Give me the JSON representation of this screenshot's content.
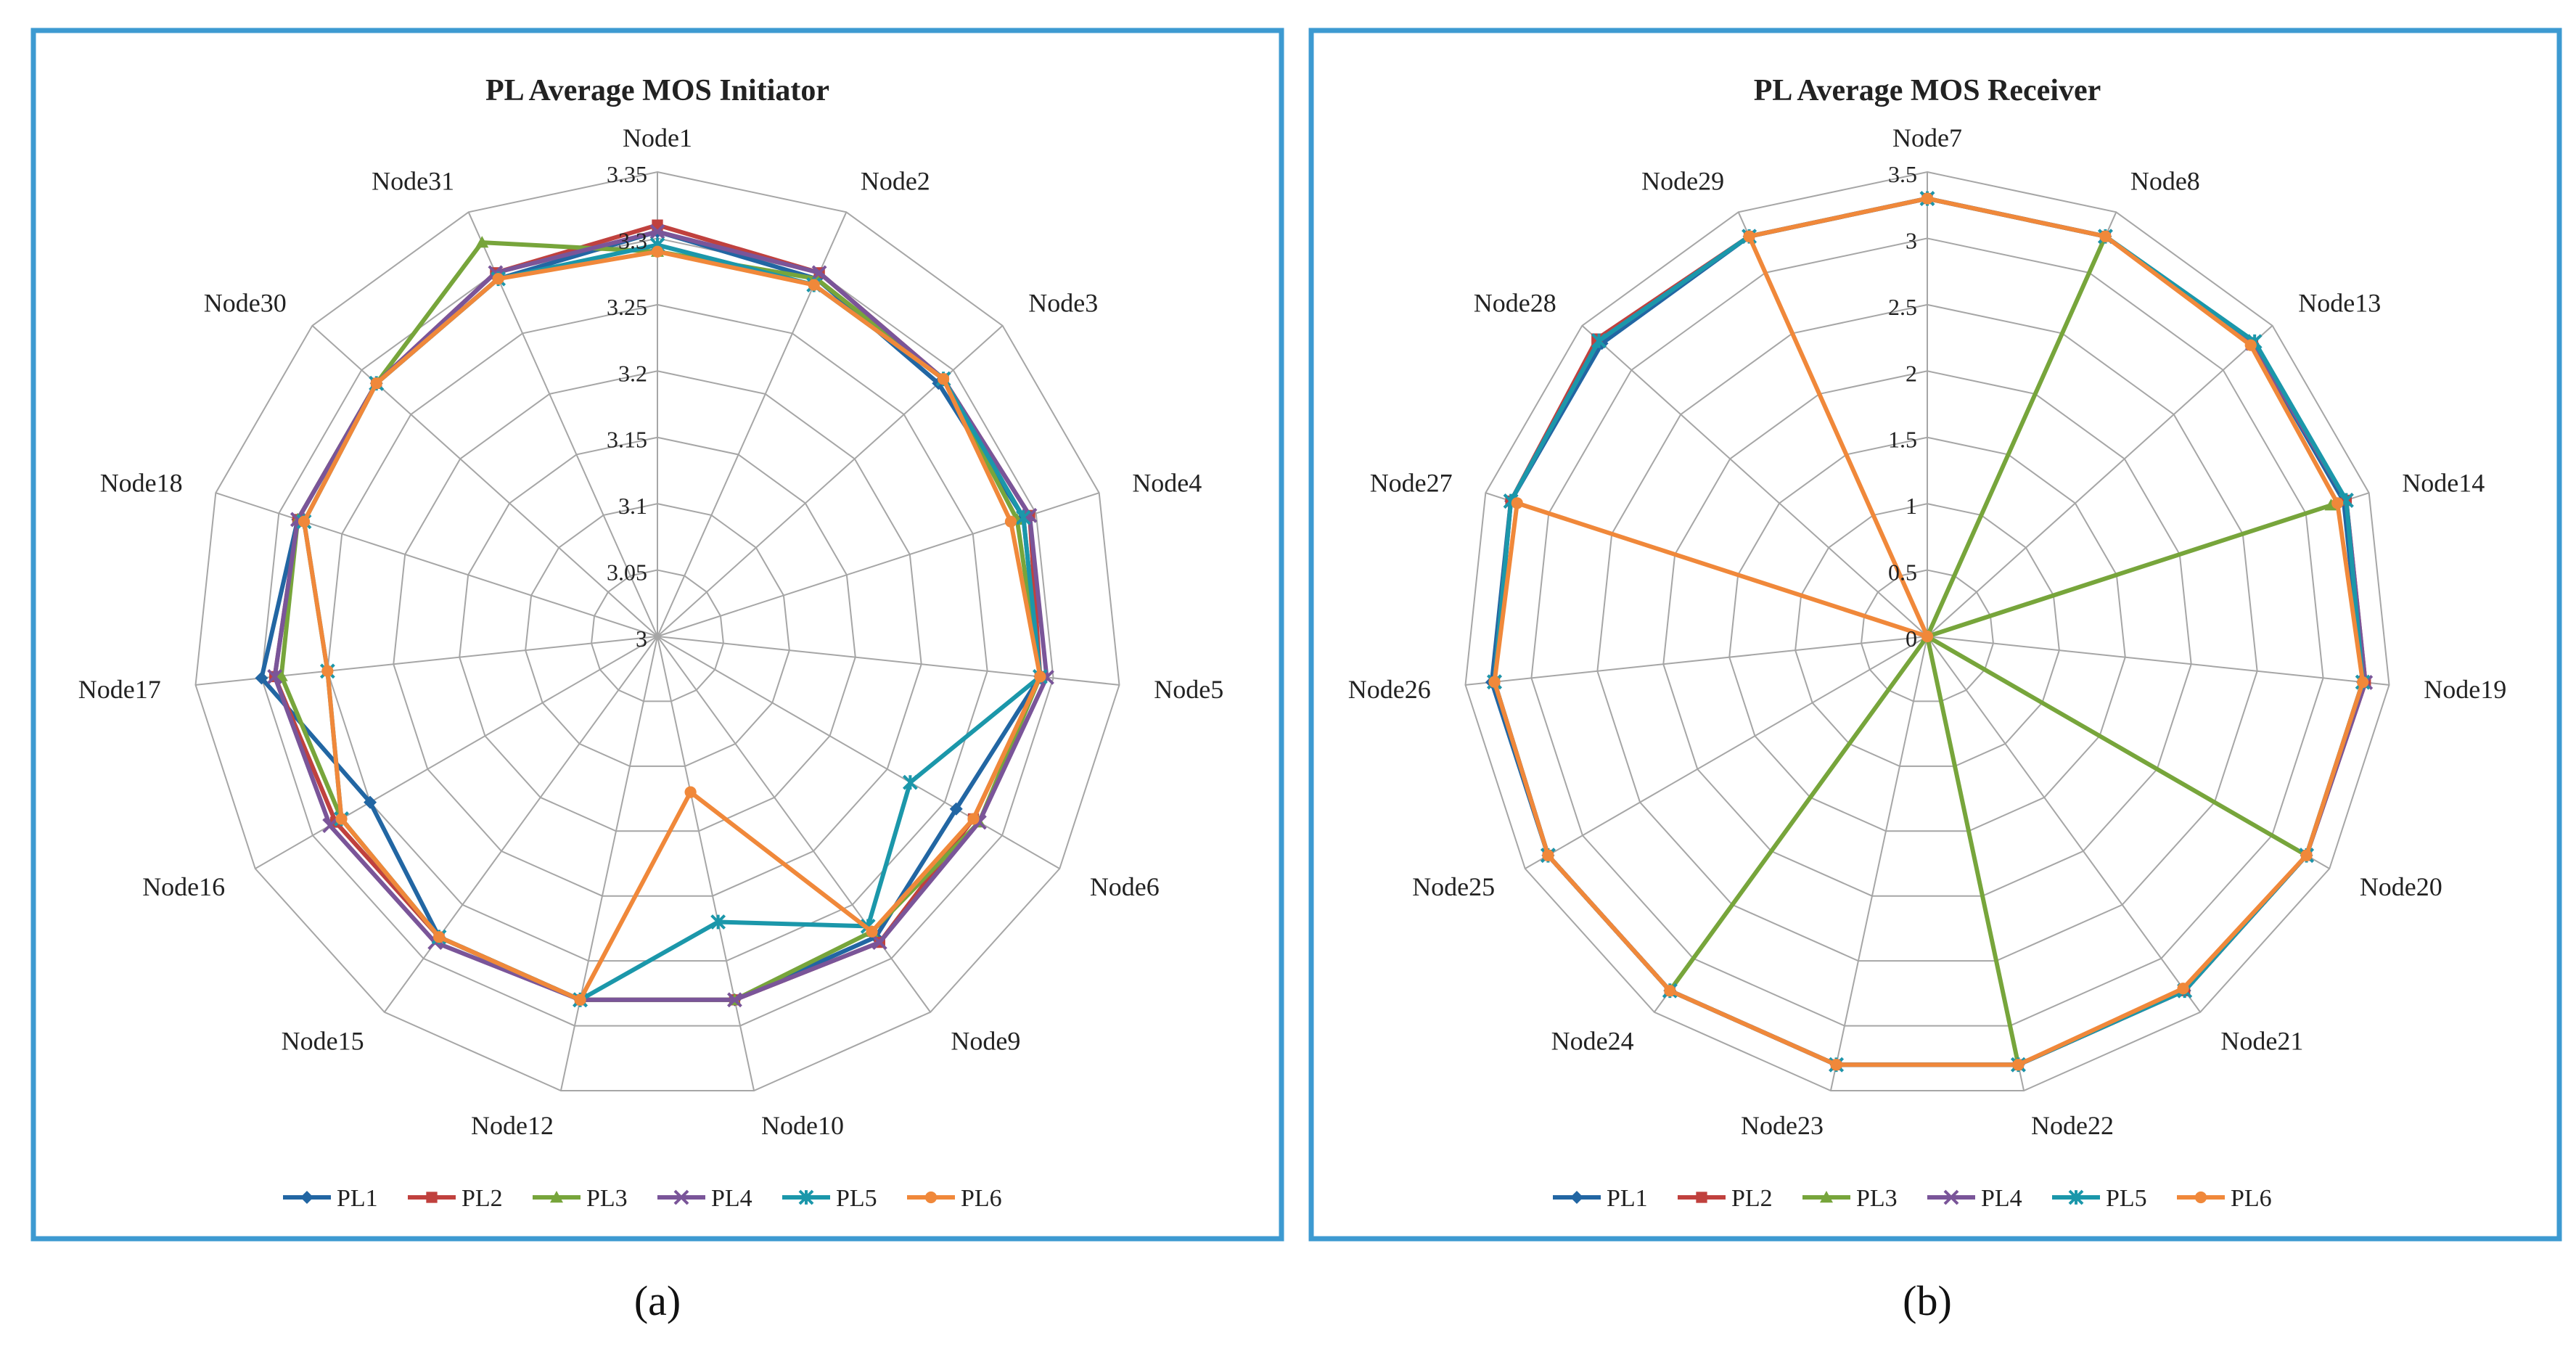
{
  "chart_data": [
    {
      "type": "radar",
      "panel_label": "(a)",
      "title": "PL Average MOS Initiator",
      "categories": [
        "Node1",
        "Node2",
        "Node3",
        "Node4",
        "Node5",
        "Node6",
        "Node9",
        "Node10",
        "Node12",
        "Node15",
        "Node16",
        "Node17",
        "Node18",
        "Node30",
        "Node31"
      ],
      "radial_ticks": [
        "3",
        "3.05",
        "3.1",
        "3.15",
        "3.2",
        "3.25",
        "3.3",
        "3.35"
      ],
      "rmin": 3,
      "rmax": 3.35,
      "series": [
        {
          "name": "PL1",
          "color": "#2266a3",
          "marker": "diamond",
          "values": [
            3.305,
            3.295,
            3.285,
            3.29,
            3.29,
            3.26,
            3.28,
            3.28,
            3.28,
            3.28,
            3.25,
            3.3,
            3.285,
            3.285,
            3.295
          ]
        },
        {
          "name": "PL2",
          "color": "#c0413e",
          "marker": "square",
          "values": [
            3.31,
            3.3,
            3.29,
            3.295,
            3.29,
            3.275,
            3.285,
            3.28,
            3.28,
            3.28,
            3.28,
            3.29,
            3.285,
            3.285,
            3.3
          ]
        },
        {
          "name": "PL3",
          "color": "#77a53b",
          "marker": "triangle",
          "values": [
            3.29,
            3.295,
            3.29,
            3.285,
            3.29,
            3.28,
            3.275,
            3.28,
            3.28,
            3.28,
            3.275,
            3.285,
            3.285,
            3.285,
            3.325
          ]
        },
        {
          "name": "PL4",
          "color": "#7a5599",
          "marker": "x",
          "values": [
            3.305,
            3.3,
            3.29,
            3.295,
            3.295,
            3.28,
            3.285,
            3.28,
            3.28,
            3.285,
            3.285,
            3.29,
            3.285,
            3.285,
            3.3
          ]
        },
        {
          "name": "PL5",
          "color": "#1b97aa",
          "marker": "asterisk",
          "values": [
            3.295,
            3.29,
            3.29,
            3.29,
            3.29,
            3.22,
            3.27,
            3.22,
            3.28,
            3.28,
            3.275,
            3.25,
            3.28,
            3.285,
            3.295
          ]
        },
        {
          "name": "PL6",
          "color": "#f0883a",
          "marker": "circle",
          "values": [
            3.29,
            3.29,
            3.29,
            3.28,
            3.29,
            3.275,
            3.275,
            3.12,
            3.28,
            3.28,
            3.275,
            3.25,
            3.28,
            3.285,
            3.295
          ]
        }
      ]
    },
    {
      "type": "radar",
      "panel_label": "(b)",
      "title": "PL Average MOS Receiver",
      "categories": [
        "Node7",
        "Node8",
        "Node13",
        "Node14",
        "Node19",
        "Node20",
        "Node21",
        "Node22",
        "Node23",
        "Node24",
        "Node25",
        "Node26",
        "Node27",
        "Node28",
        "Node29"
      ],
      "radial_ticks": [
        "0",
        "0.5",
        "1",
        "1.5",
        "2",
        "2.5",
        "3",
        "3.5"
      ],
      "rmin": 0,
      "rmax": 3.5,
      "series": [
        {
          "name": "PL1",
          "color": "#2266a3",
          "marker": "diamond",
          "values": [
            3.3,
            3.3,
            3.3,
            3.3,
            3.3,
            3.3,
            3.3,
            3.3,
            3.3,
            3.3,
            3.3,
            3.3,
            3.3,
            3.3,
            3.3
          ]
        },
        {
          "name": "PL2",
          "color": "#c0413e",
          "marker": "square",
          "values": [
            3.3,
            3.3,
            3.3,
            3.32,
            3.32,
            3.3,
            3.3,
            3.3,
            3.3,
            3.3,
            3.3,
            3.28,
            3.3,
            3.35,
            3.3
          ]
        },
        {
          "name": "PL3",
          "color": "#77a53b",
          "marker": "triangle",
          "values": [
            0,
            3.3,
            0,
            3.2,
            0,
            3.3,
            0,
            3.3,
            0,
            3.3,
            0,
            0,
            0,
            0,
            0
          ]
        },
        {
          "name": "PL4",
          "color": "#7a5599",
          "marker": "x",
          "values": [
            3.3,
            3.3,
            3.3,
            3.32,
            3.32,
            3.3,
            3.3,
            3.3,
            3.3,
            3.3,
            3.3,
            3.28,
            3.3,
            3.33,
            3.3
          ]
        },
        {
          "name": "PL5",
          "color": "#1b97aa",
          "marker": "asterisk",
          "values": [
            3.3,
            3.3,
            3.32,
            3.32,
            3.3,
            3.3,
            3.3,
            3.3,
            3.3,
            3.3,
            3.3,
            3.28,
            3.3,
            3.33,
            3.3
          ]
        },
        {
          "name": "PL6",
          "color": "#f0883a",
          "marker": "circle",
          "values": [
            3.3,
            3.3,
            3.28,
            3.25,
            3.3,
            3.3,
            3.28,
            3.3,
            3.3,
            3.3,
            3.3,
            3.28,
            3.25,
            0,
            3.3
          ]
        }
      ]
    }
  ]
}
